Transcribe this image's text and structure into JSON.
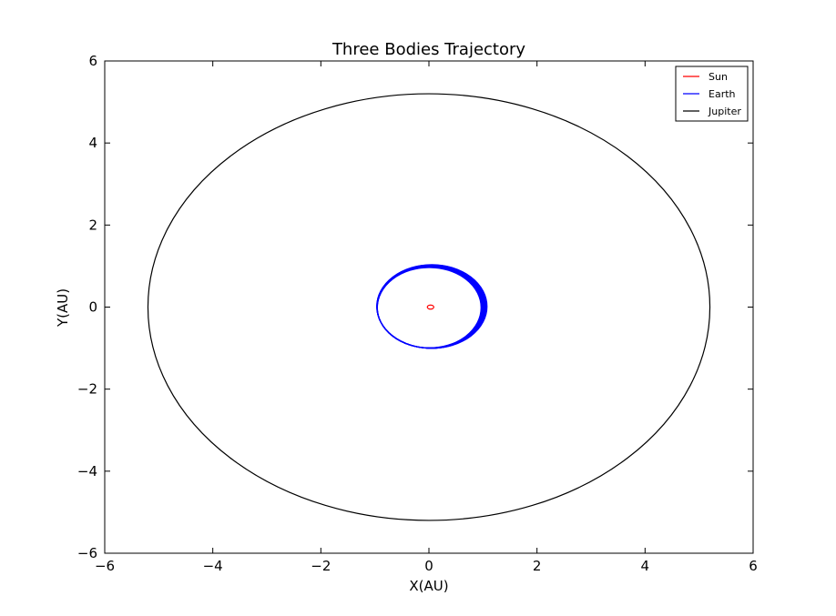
{
  "chart_data": {
    "type": "line",
    "title": "Three Bodies Trajectory",
    "xlabel": "X(AU)",
    "ylabel": "Y(AU)",
    "xlim": [
      -6,
      6
    ],
    "ylim": [
      -6,
      6
    ],
    "xticks": [
      -6,
      -4,
      -2,
      0,
      2,
      4,
      6
    ],
    "yticks": [
      -6,
      -4,
      -2,
      0,
      2,
      4,
      6
    ],
    "xtick_labels": [
      "−6",
      "−4",
      "−2",
      "0",
      "2",
      "4",
      "6"
    ],
    "ytick_labels": [
      "−6",
      "−4",
      "−2",
      "0",
      "2",
      "4",
      "6"
    ],
    "grid": false,
    "legend_position": "top-right",
    "series": [
      {
        "name": "Sun",
        "color": "#ff0000",
        "shape": "orbit",
        "center": [
          0.03,
          0.0
        ],
        "radius_x": 0.06,
        "radius_y": 0.05,
        "loops": 1
      },
      {
        "name": "Earth",
        "color": "#0000ff",
        "shape": "orbit",
        "center": [
          0.03,
          0.0
        ],
        "radius_x": 0.99,
        "radius_y": 1.0,
        "loops": 14
      },
      {
        "name": "Jupiter",
        "color": "#000000",
        "shape": "orbit",
        "center": [
          0.0,
          0.0
        ],
        "radius_x": 5.2,
        "radius_y": 5.2,
        "loops": 1
      }
    ]
  }
}
